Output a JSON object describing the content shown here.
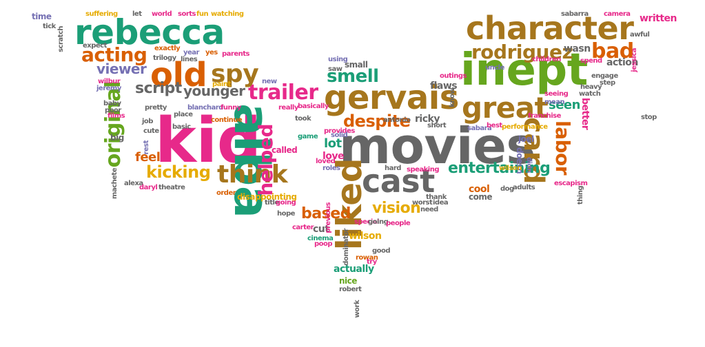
{
  "palette": {
    "teal": "#1b9e77",
    "orange": "#d95f02",
    "purple": "#7570b3",
    "magenta": "#e7298a",
    "green": "#66a61e",
    "yellow": "#e6ab02",
    "brown": "#a6761d",
    "gray": "#666666"
  },
  "shape": "bat",
  "words": [
    {
      "text": "kid",
      "color": "magenta"
    },
    {
      "text": "movies",
      "color": "gray"
    },
    {
      "text": "inept",
      "color": "green"
    },
    {
      "text": "alba",
      "color": "teal"
    },
    {
      "text": "rebecca",
      "color": "teal"
    },
    {
      "text": "character",
      "color": "brown"
    },
    {
      "text": "liked",
      "color": "brown"
    },
    {
      "text": "gervais",
      "color": "brown"
    },
    {
      "text": "cast",
      "color": "gray"
    },
    {
      "text": "old",
      "color": "orange"
    },
    {
      "text": "great",
      "color": "brown"
    },
    {
      "text": "card",
      "color": "brown"
    },
    {
      "text": "original",
      "color": "green"
    },
    {
      "text": "trailer",
      "color": "magenta"
    },
    {
      "text": "spy",
      "color": "brown"
    },
    {
      "text": "think",
      "color": "brown"
    },
    {
      "text": "labor",
      "color": "orange"
    },
    {
      "text": "helped",
      "color": "magenta"
    },
    {
      "text": "acting",
      "color": "orange"
    },
    {
      "text": "rodriguez",
      "color": "brown"
    },
    {
      "text": "bad",
      "color": "orange"
    },
    {
      "text": "entertaining",
      "color": "teal"
    },
    {
      "text": "kicking",
      "color": "yellow"
    },
    {
      "text": "script",
      "color": "gray"
    },
    {
      "text": "younger",
      "color": "gray"
    },
    {
      "text": "smell",
      "color": "teal"
    },
    {
      "text": "despite",
      "color": "orange"
    },
    {
      "text": "based",
      "color": "orange"
    },
    {
      "text": "vision",
      "color": "yellow"
    },
    {
      "text": "viewer",
      "color": "purple"
    },
    {
      "text": "seen",
      "color": "teal"
    },
    {
      "text": "lot",
      "color": "teal"
    },
    {
      "text": "love",
      "color": "magenta"
    },
    {
      "text": "feel",
      "color": "orange"
    },
    {
      "text": "actually",
      "color": "teal"
    },
    {
      "text": "wilson",
      "color": "yellow"
    },
    {
      "text": "cut",
      "color": "gray"
    },
    {
      "text": "cool",
      "color": "orange"
    },
    {
      "text": "come",
      "color": "gray"
    },
    {
      "text": "flaws",
      "color": "gray"
    },
    {
      "text": "ricky",
      "color": "gray"
    },
    {
      "text": "action",
      "color": "gray"
    },
    {
      "text": "better",
      "color": "magenta"
    },
    {
      "text": "wasn",
      "color": "gray"
    },
    {
      "text": "written",
      "color": "magenta"
    },
    {
      "text": "small",
      "color": "gray"
    },
    {
      "text": "time",
      "color": "purple"
    },
    {
      "text": "suffering",
      "color": "yellow"
    },
    {
      "text": "let",
      "color": "gray"
    },
    {
      "text": "world",
      "color": "magenta"
    },
    {
      "text": "sorts",
      "color": "magenta"
    },
    {
      "text": "fun",
      "color": "yellow"
    },
    {
      "text": "watching",
      "color": "yellow"
    },
    {
      "text": "sabarra",
      "color": "gray"
    },
    {
      "text": "camera",
      "color": "magenta"
    },
    {
      "text": "tick",
      "color": "gray"
    },
    {
      "text": "scratch",
      "color": "gray"
    },
    {
      "text": "expect",
      "color": "gray"
    },
    {
      "text": "exactly",
      "color": "orange"
    },
    {
      "text": "year",
      "color": "purple"
    },
    {
      "text": "yes",
      "color": "orange"
    },
    {
      "text": "parents",
      "color": "magenta"
    },
    {
      "text": "trilogy",
      "color": "gray"
    },
    {
      "text": "lines",
      "color": "gray"
    },
    {
      "text": "uncle",
      "color": "purple"
    },
    {
      "text": "children",
      "color": "magenta"
    },
    {
      "text": "jessica",
      "color": "magenta"
    },
    {
      "text": "awful",
      "color": "gray"
    },
    {
      "text": "spend",
      "color": "magenta"
    },
    {
      "text": "engage",
      "color": "gray"
    },
    {
      "text": "heavy",
      "color": "gray"
    },
    {
      "text": "watch",
      "color": "gray"
    },
    {
      "text": "step",
      "color": "gray"
    },
    {
      "text": "seeing",
      "color": "magenta"
    },
    {
      "text": "mean",
      "color": "purple"
    },
    {
      "text": "wilbur",
      "color": "magenta"
    },
    {
      "text": "jeremy",
      "color": "purple"
    },
    {
      "text": "new",
      "color": "purple"
    },
    {
      "text": "paint",
      "color": "yellow"
    },
    {
      "text": "using",
      "color": "purple"
    },
    {
      "text": "saw",
      "color": "gray"
    },
    {
      "text": "outings",
      "color": "magenta"
    },
    {
      "text": "know",
      "color": "gray"
    },
    {
      "text": "baby",
      "color": "gray"
    },
    {
      "text": "poor",
      "color": "gray"
    },
    {
      "text": "films",
      "color": "magenta"
    },
    {
      "text": "pretty",
      "color": "gray"
    },
    {
      "text": "blanchard",
      "color": "purple"
    },
    {
      "text": "funny",
      "color": "magenta"
    },
    {
      "text": "really",
      "color": "magenta"
    },
    {
      "text": "basically",
      "color": "magenta"
    },
    {
      "text": "place",
      "color": "gray"
    },
    {
      "text": "continue",
      "color": "orange"
    },
    {
      "text": "cute",
      "color": "gray"
    },
    {
      "text": "job",
      "color": "gray"
    },
    {
      "text": "basic",
      "color": "gray"
    },
    {
      "text": "took",
      "color": "gray"
    },
    {
      "text": "provides",
      "color": "magenta"
    },
    {
      "text": "antonio",
      "color": "gray"
    },
    {
      "text": "solid",
      "color": "purple"
    },
    {
      "text": "short",
      "color": "gray"
    },
    {
      "text": "sabara",
      "color": "purple"
    },
    {
      "text": "best",
      "color": "magenta"
    },
    {
      "text": "performance",
      "color": "yellow"
    },
    {
      "text": "franchise",
      "color": "magenta"
    },
    {
      "text": "stop",
      "color": "gray"
    },
    {
      "text": "thing",
      "color": "gray"
    },
    {
      "text": "big",
      "color": "gray"
    },
    {
      "text": "rest",
      "color": "purple"
    },
    {
      "text": "called",
      "color": "magenta"
    },
    {
      "text": "game",
      "color": "teal"
    },
    {
      "text": "joel",
      "color": "purple"
    },
    {
      "text": "doesn",
      "color": "purple"
    },
    {
      "text": "didn",
      "color": "purple"
    },
    {
      "text": "wilson",
      "color": "yellow"
    },
    {
      "text": "escapism",
      "color": "magenta"
    },
    {
      "text": "machete",
      "color": "gray"
    },
    {
      "text": "loved",
      "color": "magenta"
    },
    {
      "text": "roles",
      "color": "purple"
    },
    {
      "text": "hard",
      "color": "gray"
    },
    {
      "text": "speaking",
      "color": "magenta"
    },
    {
      "text": "alexa",
      "color": "gray"
    },
    {
      "text": "daryl",
      "color": "magenta"
    },
    {
      "text": "theatre",
      "color": "gray"
    },
    {
      "text": "dog",
      "color": "gray"
    },
    {
      "text": "adults",
      "color": "gray"
    },
    {
      "text": "order",
      "color": "orange"
    },
    {
      "text": "disappointing",
      "color": "yellow"
    },
    {
      "text": "title",
      "color": "gray"
    },
    {
      "text": "going",
      "color": "magenta"
    },
    {
      "text": "previous",
      "color": "magenta"
    },
    {
      "text": "worst",
      "color": "gray"
    },
    {
      "text": "idea",
      "color": "gray"
    },
    {
      "text": "thank",
      "color": "gray"
    },
    {
      "text": "need",
      "color": "gray"
    },
    {
      "text": "hope",
      "color": "gray"
    },
    {
      "text": "carter",
      "color": "magenta"
    },
    {
      "text": "special",
      "color": "magenta"
    },
    {
      "text": "going",
      "color": "gray"
    },
    {
      "text": "people",
      "color": "magenta"
    },
    {
      "text": "cinema",
      "color": "teal"
    },
    {
      "text": "poop",
      "color": "magenta"
    },
    {
      "text": "dominator",
      "color": "gray"
    },
    {
      "text": "good",
      "color": "gray"
    },
    {
      "text": "rowan",
      "color": "orange"
    },
    {
      "text": "try",
      "color": "magenta"
    },
    {
      "text": "nice",
      "color": "green"
    },
    {
      "text": "robert",
      "color": "gray"
    },
    {
      "text": "work",
      "color": "gray"
    }
  ]
}
